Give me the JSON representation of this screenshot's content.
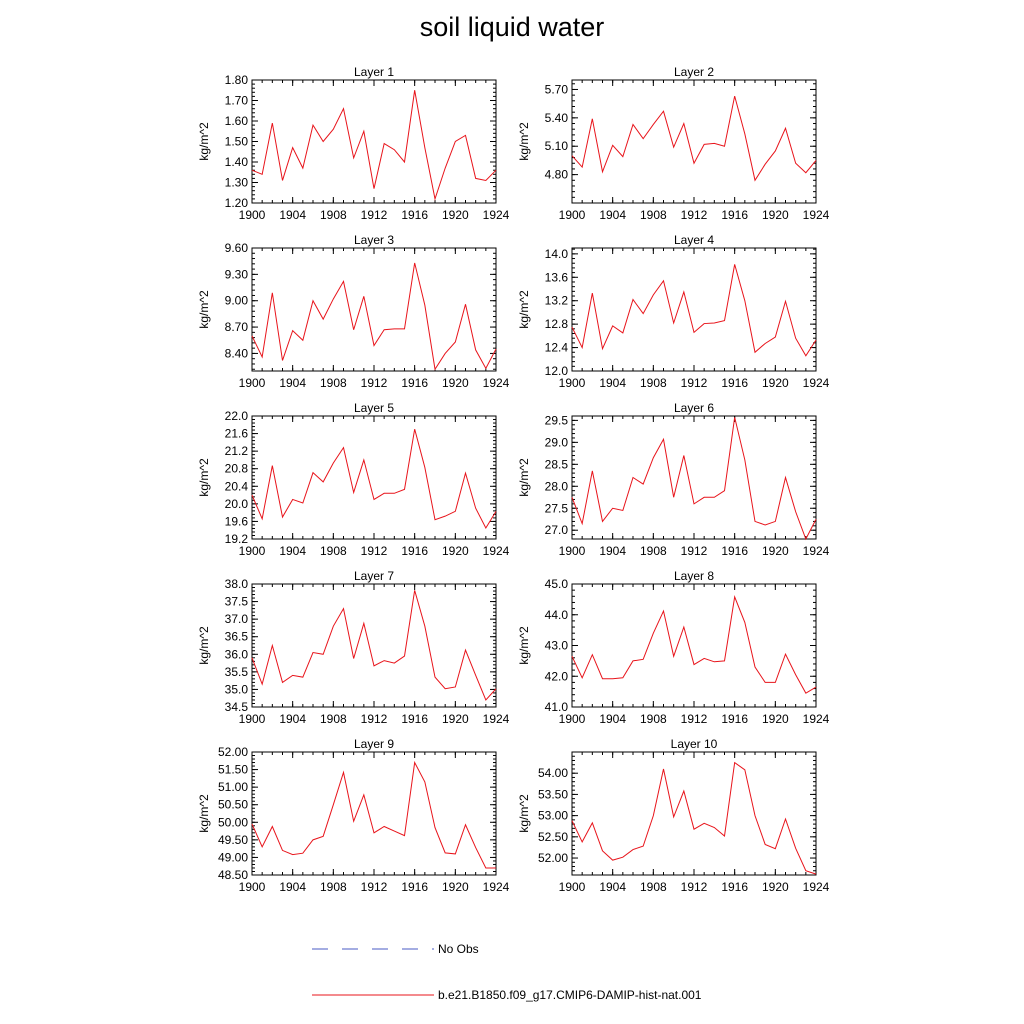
{
  "title": "soil liquid water",
  "ylabel": "kg/m^2",
  "xlim": [
    1900,
    1924
  ],
  "xticks": [
    1900,
    1904,
    1908,
    1912,
    1916,
    1920,
    1924
  ],
  "colors": {
    "model": "#e8141b",
    "obs": "#4a5bc4",
    "axis": "#000000"
  },
  "legend": [
    {
      "label": "No Obs",
      "style": "dashed",
      "color": "#4a5bc4"
    },
    {
      "label": "b.e21.B1850.f09_g17.CMIP6-DAMIP-hist-nat.001",
      "style": "solid",
      "color": "#e8141b"
    }
  ],
  "chart_data": [
    {
      "type": "line",
      "title": "Layer 1",
      "ylim": [
        1.2,
        1.8
      ],
      "yticks": [
        "1.20",
        "1.30",
        "1.40",
        "1.50",
        "1.60",
        "1.70",
        "1.80"
      ],
      "x": [
        1900,
        1901,
        1902,
        1903,
        1904,
        1905,
        1906,
        1907,
        1908,
        1909,
        1910,
        1911,
        1912,
        1913,
        1914,
        1915,
        1916,
        1917,
        1918,
        1919,
        1920,
        1921,
        1922,
        1923,
        1924
      ],
      "series": [
        {
          "values": [
            1.36,
            1.34,
            1.59,
            1.31,
            1.47,
            1.37,
            1.58,
            1.5,
            1.56,
            1.66,
            1.42,
            1.55,
            1.27,
            1.49,
            1.46,
            1.4,
            1.75,
            1.47,
            1.22,
            1.37,
            1.5,
            1.53,
            1.32,
            1.31,
            1.36
          ]
        }
      ]
    },
    {
      "type": "line",
      "title": "Layer 2",
      "ylim": [
        4.5,
        5.8
      ],
      "yticks": [
        "4.80",
        "5.10",
        "5.40",
        "5.70"
      ],
      "x": [
        1900,
        1901,
        1902,
        1903,
        1904,
        1905,
        1906,
        1907,
        1908,
        1909,
        1910,
        1911,
        1912,
        1913,
        1914,
        1915,
        1916,
        1917,
        1918,
        1919,
        1920,
        1921,
        1922,
        1923,
        1924
      ],
      "series": [
        {
          "values": [
            5.0,
            4.88,
            5.39,
            4.83,
            5.11,
            4.99,
            5.33,
            5.18,
            5.33,
            5.47,
            5.09,
            5.34,
            4.92,
            5.12,
            5.13,
            5.1,
            5.63,
            5.23,
            4.74,
            4.91,
            5.05,
            5.29,
            4.92,
            4.82,
            4.95
          ]
        }
      ]
    },
    {
      "type": "line",
      "title": "Layer 3",
      "ylim": [
        8.2,
        9.6
      ],
      "yticks": [
        "8.40",
        "8.70",
        "9.00",
        "9.30",
        "9.60"
      ],
      "x": [
        1900,
        1901,
        1902,
        1903,
        1904,
        1905,
        1906,
        1907,
        1908,
        1909,
        1910,
        1911,
        1912,
        1913,
        1914,
        1915,
        1916,
        1917,
        1918,
        1919,
        1920,
        1921,
        1922,
        1923,
        1924
      ],
      "series": [
        {
          "values": [
            8.6,
            8.36,
            9.09,
            8.32,
            8.66,
            8.55,
            9.0,
            8.79,
            9.02,
            9.22,
            8.67,
            9.05,
            8.49,
            8.67,
            8.68,
            8.68,
            9.43,
            8.95,
            8.22,
            8.4,
            8.53,
            8.96,
            8.44,
            8.23,
            8.45
          ]
        }
      ]
    },
    {
      "type": "line",
      "title": "Layer 4",
      "ylim": [
        12.0,
        14.1
      ],
      "yticks": [
        "12.0",
        "12.4",
        "12.8",
        "13.2",
        "13.6",
        "14.0"
      ],
      "x": [
        1900,
        1901,
        1902,
        1903,
        1904,
        1905,
        1906,
        1907,
        1908,
        1909,
        1910,
        1911,
        1912,
        1913,
        1914,
        1915,
        1916,
        1917,
        1918,
        1919,
        1920,
        1921,
        1922,
        1923,
        1924
      ],
      "series": [
        {
          "values": [
            12.75,
            12.4,
            13.33,
            12.38,
            12.77,
            12.65,
            13.22,
            12.98,
            13.3,
            13.54,
            12.82,
            13.35,
            12.66,
            12.81,
            12.82,
            12.86,
            13.82,
            13.2,
            12.32,
            12.47,
            12.58,
            13.19,
            12.56,
            12.26,
            12.53
          ]
        }
      ]
    },
    {
      "type": "line",
      "title": "Layer 5",
      "ylim": [
        19.2,
        22.0
      ],
      "yticks": [
        "19.2",
        "19.6",
        "20.0",
        "20.4",
        "20.8",
        "21.2",
        "21.6",
        "22.0"
      ],
      "x": [
        1900,
        1901,
        1902,
        1903,
        1904,
        1905,
        1906,
        1907,
        1908,
        1909,
        1910,
        1911,
        1912,
        1913,
        1914,
        1915,
        1916,
        1917,
        1918,
        1919,
        1920,
        1921,
        1922,
        1923,
        1924
      ],
      "series": [
        {
          "values": [
            20.2,
            19.66,
            20.87,
            19.7,
            20.1,
            20.02,
            20.71,
            20.5,
            20.93,
            21.28,
            20.26,
            21.0,
            20.1,
            20.24,
            20.24,
            20.33,
            21.7,
            20.83,
            19.64,
            19.72,
            19.83,
            20.7,
            19.9,
            19.45,
            19.83
          ]
        }
      ]
    },
    {
      "type": "line",
      "title": "Layer 6",
      "ylim": [
        26.8,
        29.6
      ],
      "yticks": [
        "27.0",
        "27.5",
        "28.0",
        "28.5",
        "29.0",
        "29.5"
      ],
      "x": [
        1900,
        1901,
        1902,
        1903,
        1904,
        1905,
        1906,
        1907,
        1908,
        1909,
        1910,
        1911,
        1912,
        1913,
        1914,
        1915,
        1916,
        1917,
        1918,
        1919,
        1920,
        1921,
        1922,
        1923,
        1924
      ],
      "series": [
        {
          "values": [
            27.75,
            27.15,
            28.35,
            27.2,
            27.5,
            27.45,
            28.2,
            28.05,
            28.65,
            29.07,
            27.75,
            28.7,
            27.6,
            27.75,
            27.75,
            27.9,
            29.57,
            28.6,
            27.2,
            27.12,
            27.2,
            28.2,
            27.42,
            26.8,
            27.25
          ]
        }
      ]
    },
    {
      "type": "line",
      "title": "Layer 7",
      "ylim": [
        34.5,
        38.0
      ],
      "yticks": [
        "34.5",
        "35.0",
        "35.5",
        "36.0",
        "36.5",
        "37.0",
        "37.5",
        "38.0"
      ],
      "x": [
        1900,
        1901,
        1902,
        1903,
        1904,
        1905,
        1906,
        1907,
        1908,
        1909,
        1910,
        1911,
        1912,
        1913,
        1914,
        1915,
        1916,
        1917,
        1918,
        1919,
        1920,
        1921,
        1922,
        1923,
        1924
      ],
      "series": [
        {
          "values": [
            35.9,
            35.15,
            36.25,
            35.2,
            35.4,
            35.35,
            36.05,
            36.0,
            36.8,
            37.3,
            35.88,
            36.88,
            35.67,
            35.82,
            35.75,
            35.95,
            37.82,
            36.8,
            35.35,
            35.02,
            35.07,
            36.12,
            35.4,
            34.7,
            35.02
          ]
        }
      ]
    },
    {
      "type": "line",
      "title": "Layer 8",
      "ylim": [
        41.0,
        45.0
      ],
      "yticks": [
        "41.0",
        "42.0",
        "43.0",
        "44.0",
        "45.0"
      ],
      "x": [
        1900,
        1901,
        1902,
        1903,
        1904,
        1905,
        1906,
        1907,
        1908,
        1909,
        1910,
        1911,
        1912,
        1913,
        1914,
        1915,
        1916,
        1917,
        1918,
        1919,
        1920,
        1921,
        1922,
        1923,
        1924
      ],
      "series": [
        {
          "values": [
            42.65,
            41.95,
            42.7,
            41.92,
            41.92,
            41.95,
            42.5,
            42.55,
            43.4,
            44.12,
            42.65,
            43.6,
            42.38,
            42.58,
            42.47,
            42.5,
            44.58,
            43.75,
            42.3,
            41.8,
            41.8,
            42.72,
            42.05,
            41.45,
            41.65
          ]
        }
      ]
    },
    {
      "type": "line",
      "title": "Layer 9",
      "ylim": [
        48.5,
        52.0
      ],
      "yticks": [
        "48.50",
        "49.00",
        "49.50",
        "50.00",
        "50.50",
        "51.00",
        "51.50",
        "52.00"
      ],
      "x": [
        1900,
        1901,
        1902,
        1903,
        1904,
        1905,
        1906,
        1907,
        1908,
        1909,
        1910,
        1911,
        1912,
        1913,
        1914,
        1915,
        1916,
        1917,
        1918,
        1919,
        1920,
        1921,
        1922,
        1923,
        1924
      ],
      "series": [
        {
          "values": [
            49.95,
            49.3,
            49.88,
            49.2,
            49.08,
            49.12,
            49.5,
            49.6,
            50.5,
            51.42,
            50.03,
            50.78,
            49.7,
            49.88,
            49.75,
            49.62,
            51.7,
            51.15,
            49.85,
            49.13,
            49.1,
            49.93,
            49.28,
            48.7,
            48.7
          ]
        }
      ]
    },
    {
      "type": "line",
      "title": "Layer 10",
      "ylim": [
        51.6,
        54.5
      ],
      "yticks": [
        "52.00",
        "52.50",
        "53.00",
        "53.50",
        "54.00"
      ],
      "x": [
        1900,
        1901,
        1902,
        1903,
        1904,
        1905,
        1906,
        1907,
        1908,
        1909,
        1910,
        1911,
        1912,
        1913,
        1914,
        1915,
        1916,
        1917,
        1918,
        1919,
        1920,
        1921,
        1922,
        1923,
        1924
      ],
      "series": [
        {
          "values": [
            52.88,
            52.38,
            52.83,
            52.17,
            51.95,
            52.02,
            52.2,
            52.28,
            53.0,
            54.1,
            52.97,
            53.58,
            52.68,
            52.82,
            52.72,
            52.52,
            54.25,
            54.08,
            53.0,
            52.32,
            52.22,
            52.92,
            52.23,
            51.7,
            51.62
          ]
        }
      ]
    }
  ]
}
